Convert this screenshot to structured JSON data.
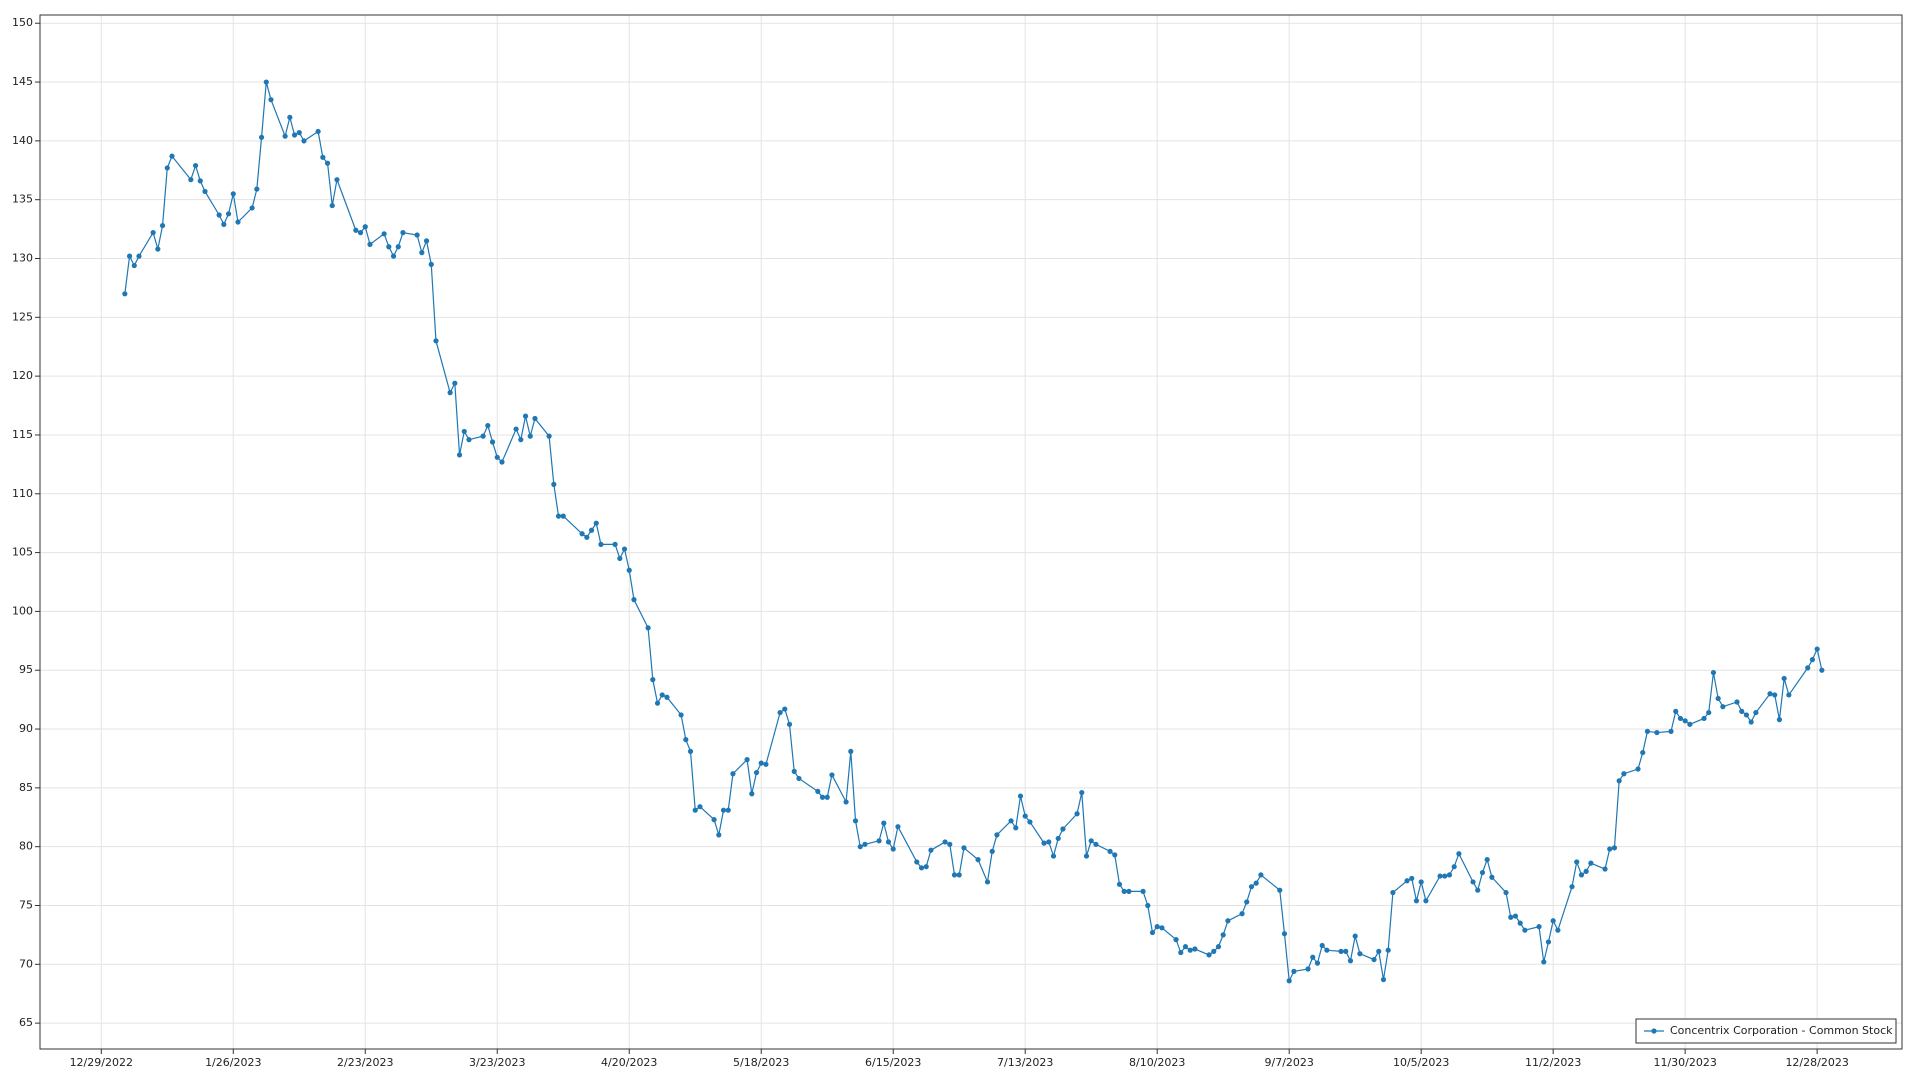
{
  "chart_data": {
    "type": "line",
    "x": [
      "1/3/2023",
      "1/4/2023",
      "1/5/2023",
      "1/6/2023",
      "1/9/2023",
      "1/10/2023",
      "1/11/2023",
      "1/12/2023",
      "1/13/2023",
      "1/17/2023",
      "1/18/2023",
      "1/19/2023",
      "1/20/2023",
      "1/23/2023",
      "1/24/2023",
      "1/25/2023",
      "1/26/2023",
      "1/27/2023",
      "1/30/2023",
      "1/31/2023",
      "2/1/2023",
      "2/2/2023",
      "2/3/2023",
      "2/6/2023",
      "2/7/2023",
      "2/8/2023",
      "2/9/2023",
      "2/10/2023",
      "2/13/2023",
      "2/14/2023",
      "2/15/2023",
      "2/16/2023",
      "2/17/2023",
      "2/21/2023",
      "2/22/2023",
      "2/23/2023",
      "2/24/2023",
      "2/27/2023",
      "2/28/2023",
      "3/1/2023",
      "3/2/2023",
      "3/3/2023",
      "3/6/2023",
      "3/7/2023",
      "3/8/2023",
      "3/9/2023",
      "3/10/2023",
      "3/13/2023",
      "3/14/2023",
      "3/15/2023",
      "3/16/2023",
      "3/17/2023",
      "3/20/2023",
      "3/21/2023",
      "3/22/2023",
      "3/23/2023",
      "3/24/2023",
      "3/27/2023",
      "3/28/2023",
      "3/29/2023",
      "3/30/2023",
      "3/31/2023",
      "4/3/2023",
      "4/4/2023",
      "4/5/2023",
      "4/6/2023",
      "4/10/2023",
      "4/11/2023",
      "4/12/2023",
      "4/13/2023",
      "4/14/2023",
      "4/17/2023",
      "4/18/2023",
      "4/19/2023",
      "4/20/2023",
      "4/21/2023",
      "4/24/2023",
      "4/25/2023",
      "4/26/2023",
      "4/27/2023",
      "4/28/2023",
      "5/1/2023",
      "5/2/2023",
      "5/3/2023",
      "5/4/2023",
      "5/5/2023",
      "5/8/2023",
      "5/9/2023",
      "5/10/2023",
      "5/11/2023",
      "5/12/2023",
      "5/15/2023",
      "5/16/2023",
      "5/17/2023",
      "5/18/2023",
      "5/19/2023",
      "5/22/2023",
      "5/23/2023",
      "5/24/2023",
      "5/25/2023",
      "5/26/2023",
      "5/30/2023",
      "5/31/2023",
      "6/1/2023",
      "6/2/2023",
      "6/5/2023",
      "6/6/2023",
      "6/7/2023",
      "6/8/2023",
      "6/9/2023",
      "6/12/2023",
      "6/13/2023",
      "6/14/2023",
      "6/15/2023",
      "6/16/2023",
      "6/20/2023",
      "6/21/2023",
      "6/22/2023",
      "6/23/2023",
      "6/26/2023",
      "6/27/2023",
      "6/28/2023",
      "6/29/2023",
      "6/30/2023",
      "7/3/2023",
      "7/5/2023",
      "7/6/2023",
      "7/7/2023",
      "7/10/2023",
      "7/11/2023",
      "7/12/2023",
      "7/13/2023",
      "7/14/2023",
      "7/17/2023",
      "7/18/2023",
      "7/19/2023",
      "7/20/2023",
      "7/21/2023",
      "7/24/2023",
      "7/25/2023",
      "7/26/2023",
      "7/27/2023",
      "7/28/2023",
      "7/31/2023",
      "8/1/2023",
      "8/2/2023",
      "8/3/2023",
      "8/4/2023",
      "8/7/2023",
      "8/8/2023",
      "8/9/2023",
      "8/10/2023",
      "8/11/2023",
      "8/14/2023",
      "8/15/2023",
      "8/16/2023",
      "8/17/2023",
      "8/18/2023",
      "8/21/2023",
      "8/22/2023",
      "8/23/2023",
      "8/24/2023",
      "8/25/2023",
      "8/28/2023",
      "8/29/2023",
      "8/30/2023",
      "8/31/2023",
      "9/1/2023",
      "9/5/2023",
      "9/6/2023",
      "9/7/2023",
      "9/8/2023",
      "9/11/2023",
      "9/12/2023",
      "9/13/2023",
      "9/14/2023",
      "9/15/2023",
      "9/18/2023",
      "9/19/2023",
      "9/20/2023",
      "9/21/2023",
      "9/22/2023",
      "9/25/2023",
      "9/26/2023",
      "9/27/2023",
      "9/28/2023",
      "9/29/2023",
      "10/2/2023",
      "10/3/2023",
      "10/4/2023",
      "10/5/2023",
      "10/6/2023",
      "10/9/2023",
      "10/10/2023",
      "10/11/2023",
      "10/12/2023",
      "10/13/2023",
      "10/16/2023",
      "10/17/2023",
      "10/18/2023",
      "10/19/2023",
      "10/20/2023",
      "10/23/2023",
      "10/24/2023",
      "10/25/2023",
      "10/26/2023",
      "10/27/2023",
      "10/30/2023",
      "10/31/2023",
      "11/1/2023",
      "11/2/2023",
      "11/3/2023",
      "11/6/2023",
      "11/7/2023",
      "11/8/2023",
      "11/9/2023",
      "11/10/2023",
      "11/13/2023",
      "11/14/2023",
      "11/15/2023",
      "11/16/2023",
      "11/17/2023",
      "11/20/2023",
      "11/21/2023",
      "11/22/2023",
      "11/24/2023",
      "11/27/2023",
      "11/28/2023",
      "11/29/2023",
      "11/30/2023",
      "12/1/2023",
      "12/4/2023",
      "12/5/2023",
      "12/6/2023",
      "12/7/2023",
      "12/8/2023",
      "12/11/2023",
      "12/12/2023",
      "12/13/2023",
      "12/14/2023",
      "12/15/2023",
      "12/18/2023",
      "12/19/2023",
      "12/20/2023",
      "12/21/2023",
      "12/22/2023",
      "12/26/2023",
      "12/27/2023",
      "12/28/2023",
      "12/29/2023"
    ],
    "series": [
      {
        "name": "Concentrix Corporation - Common Stock",
        "color": "#1f77b4",
        "values": [
          127,
          130.2,
          129.4,
          130.2,
          132.2,
          130.8,
          132.8,
          137.7,
          138.7,
          136.7,
          137.9,
          136.6,
          135.7,
          133.7,
          132.9,
          133.8,
          135.5,
          133.1,
          134.3,
          135.9,
          140.3,
          145,
          143.5,
          140.4,
          142,
          140.5,
          140.7,
          140,
          140.8,
          138.6,
          138.1,
          134.5,
          136.7,
          132.4,
          132.2,
          132.7,
          131.2,
          132.1,
          131,
          130.2,
          131,
          132.2,
          132,
          130.5,
          131.5,
          129.5,
          123,
          118.6,
          119.4,
          113.3,
          115.3,
          114.6,
          114.9,
          115.8,
          114.4,
          113.1,
          112.7,
          115.5,
          114.6,
          116.6,
          114.9,
          116.4,
          114.9,
          110.8,
          108.1,
          108.1,
          106.6,
          106.3,
          106.9,
          107.5,
          105.7,
          105.7,
          104.5,
          105.3,
          103.5,
          101,
          98.6,
          94.2,
          92.2,
          92.9,
          92.7,
          91.2,
          89.1,
          88.1,
          83.1,
          83.4,
          82.3,
          81,
          83.1,
          83.1,
          86.2,
          87.4,
          84.5,
          86.3,
          87.1,
          87,
          91.4,
          91.7,
          90.4,
          86.4,
          85.8,
          84.7,
          84.2,
          84.2,
          86.1,
          83.8,
          88.1,
          82.2,
          80,
          80.2,
          80.5,
          82,
          80.4,
          79.8,
          81.7,
          78.7,
          78.2,
          78.3,
          79.7,
          80.4,
          80.2,
          77.6,
          77.6,
          79.9,
          78.9,
          77,
          79.6,
          81,
          82.2,
          81.6,
          84.3,
          82.6,
          82.1,
          80.3,
          80.4,
          79.2,
          80.7,
          81.5,
          82.8,
          84.6,
          79.2,
          80.5,
          80.2,
          79.6,
          79.3,
          76.8,
          76.2,
          76.2,
          76.2,
          75,
          72.7,
          73.2,
          73.1,
          72.1,
          71,
          71.5,
          71.2,
          71.3,
          70.8,
          71.1,
          71.5,
          72.5,
          73.7,
          74.3,
          75.3,
          76.6,
          76.9,
          77.6,
          76.3,
          72.6,
          68.6,
          69.4,
          69.6,
          70.6,
          70.1,
          71.6,
          71.2,
          71.1,
          71.1,
          70.3,
          72.4,
          70.9,
          70.4,
          71.1,
          68.7,
          71.2,
          76.1,
          77.1,
          77.3,
          75.4,
          77,
          75.4,
          77.5,
          77.5,
          77.6,
          78.3,
          79.4,
          77,
          76.3,
          77.8,
          78.9,
          77.4,
          76.1,
          74,
          74.1,
          73.5,
          72.9,
          73.2,
          70.2,
          71.9,
          73.7,
          72.9,
          76.6,
          78.7,
          77.6,
          77.9,
          78.6,
          78.1,
          79.8,
          79.9,
          85.6,
          86.2,
          86.6,
          88,
          89.8,
          89.7,
          89.8,
          91.5,
          90.9,
          90.7,
          90.4,
          90.9,
          91.4,
          94.8,
          92.6,
          91.9,
          92.3,
          91.5,
          91.2,
          90.6,
          91.4,
          93,
          92.9,
          90.8,
          94.3,
          92.9,
          95.2,
          95.9,
          96.8,
          95
        ]
      }
    ],
    "xlim": [
      "12/16/2022",
      "1/15/2024"
    ],
    "xticks": [
      "12/29/2022",
      "1/26/2023",
      "2/23/2023",
      "3/23/2023",
      "4/20/2023",
      "5/18/2023",
      "6/15/2023",
      "7/13/2023",
      "8/10/2023",
      "9/7/2023",
      "10/5/2023",
      "11/2/2023",
      "11/30/2023",
      "12/28/2023"
    ],
    "ylim": [
      62.8,
      150.7
    ],
    "yticks": [
      65,
      70,
      75,
      80,
      85,
      90,
      95,
      100,
      105,
      110,
      115,
      120,
      125,
      130,
      135,
      140,
      145,
      150
    ],
    "grid": true,
    "legend": "bottom-right"
  }
}
